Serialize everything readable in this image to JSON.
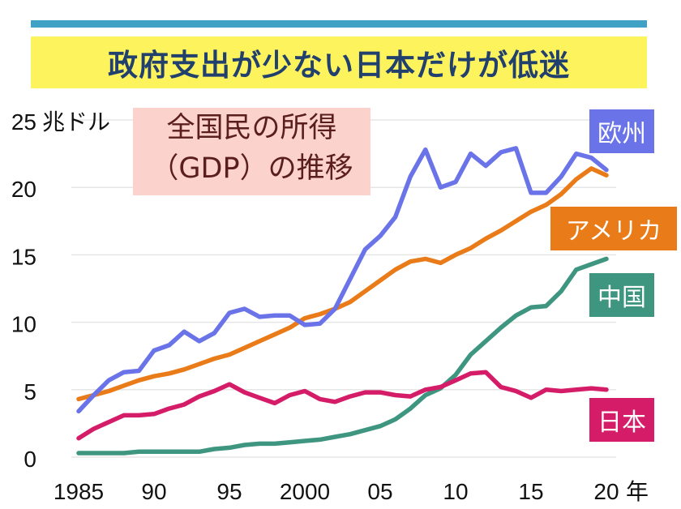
{
  "header": {
    "title": "政府支出が少ない日本だけが低迷",
    "subtitle_line1": "全国民の所得",
    "subtitle_line2": "（GDP）の推移"
  },
  "colors": {
    "top_bar": "#3fa1c4",
    "title_band": "#fdf35c",
    "title_text": "#22406e",
    "subtitle_bg": "#fcd2cd",
    "subtitle_text": "#5a1f1c",
    "europe": "#6a74e8",
    "usa": "#ea7b19",
    "china": "#3e9680",
    "japan": "#d41c68",
    "grid": "#e6e6e6"
  },
  "chart_data": {
    "type": "line",
    "title": "全国民の所得（GDP）の推移",
    "xlabel": "年",
    "ylabel": "兆ドル",
    "ylim": [
      0,
      25
    ],
    "xlim": [
      1985,
      2020
    ],
    "grid": true,
    "y_ticks": [
      0,
      5,
      10,
      15,
      20,
      25
    ],
    "y_tick_labels": [
      "0",
      "5",
      "10",
      "15",
      "20",
      "25"
    ],
    "y_unit_label": "兆ドル",
    "x_ticks": [
      1985,
      1990,
      1995,
      2000,
      2005,
      2010,
      2015,
      2020
    ],
    "x_tick_labels": [
      "1985",
      "90",
      "95",
      "2000",
      "05",
      "10",
      "15",
      "20"
    ],
    "x_unit_label": "年",
    "legend_placement": "right (labels at line ends)",
    "x": [
      1985,
      1986,
      1987,
      1988,
      1989,
      1990,
      1991,
      1992,
      1993,
      1994,
      1995,
      1996,
      1997,
      1998,
      1999,
      2000,
      2001,
      2002,
      2003,
      2004,
      2005,
      2006,
      2007,
      2008,
      2009,
      2010,
      2011,
      2012,
      2013,
      2014,
      2015,
      2016,
      2017,
      2018,
      2019,
      2020
    ],
    "series": [
      {
        "key": "europe",
        "name": "欧州",
        "values": [
          3.4,
          4.6,
          5.7,
          6.3,
          6.4,
          7.9,
          8.3,
          9.3,
          8.6,
          9.2,
          10.7,
          11.0,
          10.4,
          10.5,
          10.5,
          9.8,
          9.9,
          11.0,
          13.2,
          15.4,
          16.4,
          17.8,
          20.8,
          22.8,
          20.0,
          20.4,
          22.5,
          21.6,
          22.6,
          22.9,
          19.6,
          19.6,
          20.8,
          22.5,
          22.2,
          21.3
        ]
      },
      {
        "key": "usa",
        "name": "アメリカ",
        "values": [
          4.3,
          4.6,
          4.9,
          5.3,
          5.7,
          6.0,
          6.2,
          6.5,
          6.9,
          7.3,
          7.6,
          8.1,
          8.6,
          9.1,
          9.6,
          10.3,
          10.6,
          11.0,
          11.5,
          12.3,
          13.1,
          13.9,
          14.5,
          14.7,
          14.4,
          15.0,
          15.5,
          16.2,
          16.8,
          17.5,
          18.2,
          18.7,
          19.5,
          20.6,
          21.4,
          20.9
        ]
      },
      {
        "key": "china",
        "name": "中国",
        "values": [
          0.3,
          0.3,
          0.3,
          0.3,
          0.4,
          0.4,
          0.4,
          0.4,
          0.4,
          0.6,
          0.7,
          0.9,
          1.0,
          1.0,
          1.1,
          1.2,
          1.3,
          1.5,
          1.7,
          2.0,
          2.3,
          2.8,
          3.6,
          4.6,
          5.1,
          6.1,
          7.6,
          8.6,
          9.6,
          10.5,
          11.1,
          11.2,
          12.3,
          13.9,
          14.3,
          14.7
        ]
      },
      {
        "key": "japan",
        "name": "日本",
        "values": [
          1.4,
          2.1,
          2.6,
          3.1,
          3.1,
          3.2,
          3.6,
          3.9,
          4.5,
          4.9,
          5.4,
          4.8,
          4.4,
          4.0,
          4.6,
          4.9,
          4.3,
          4.1,
          4.5,
          4.8,
          4.8,
          4.6,
          4.5,
          5.0,
          5.2,
          5.7,
          6.2,
          6.3,
          5.2,
          4.9,
          4.4,
          5.0,
          4.9,
          5.0,
          5.1,
          5.0
        ]
      }
    ]
  }
}
